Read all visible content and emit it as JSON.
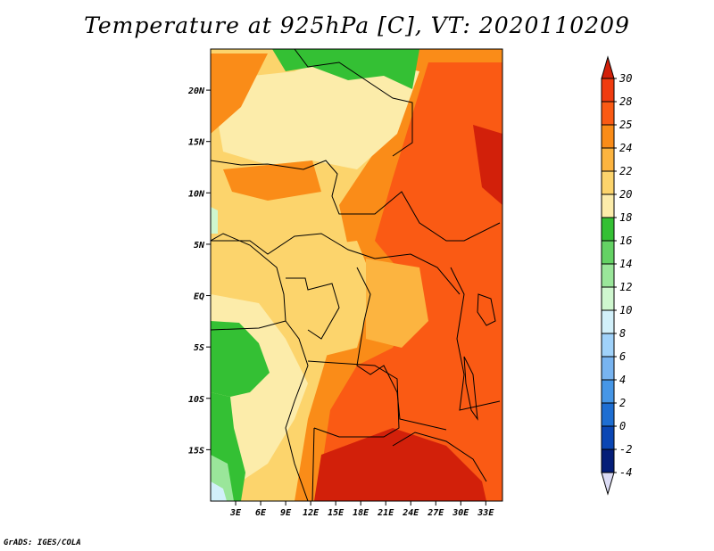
{
  "title": "Temperature at 925hPa [C], VT: 2020110209",
  "footer": "GrADS: IGES/COLA",
  "map": {
    "lon_range": [
      0,
      35
    ],
    "lat_range": [
      -20,
      24
    ],
    "lon_ticks": [
      "3E",
      "6E",
      "9E",
      "12E",
      "15E",
      "18E",
      "21E",
      "24E",
      "27E",
      "30E",
      "33E"
    ],
    "lat_ticks": [
      "20N",
      "15N",
      "10N",
      "5N",
      "EQ",
      "5S",
      "10S",
      "15S"
    ]
  },
  "colorbar": {
    "levels": [
      "30",
      "28",
      "25",
      "24",
      "22",
      "20",
      "18",
      "16",
      "14",
      "12",
      "10",
      "8",
      "6",
      "4",
      "2",
      "0",
      "-2",
      "-4"
    ],
    "colors": [
      "#f03c10",
      "#fa5a14",
      "#fa8c18",
      "#fcb440",
      "#fcd46c",
      "#fcecaa",
      "#34c034",
      "#64d264",
      "#9ae69a",
      "#cff7cf",
      "#d2f0fa",
      "#a0d2fa",
      "#78b4f0",
      "#4696e6",
      "#1e6ed2",
      "#0a46b4",
      "#051e78"
    ],
    "top_color": "#d2200a",
    "bottom_color": "#dcdcf5"
  }
}
